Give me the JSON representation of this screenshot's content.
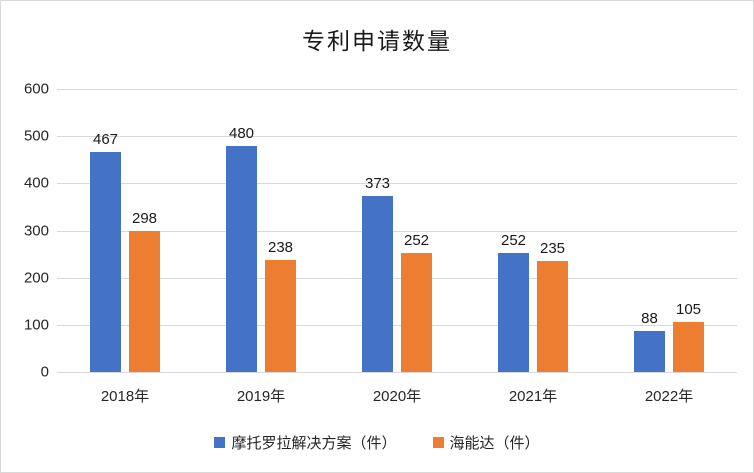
{
  "chart_data": {
    "type": "bar",
    "title": "专利申请数量",
    "categories": [
      "2018年",
      "2019年",
      "2020年",
      "2021年",
      "2022年"
    ],
    "series": [
      {
        "name": "摩托罗拉解决方案（件）",
        "color": "#4472C4",
        "values": [
          467,
          480,
          373,
          252,
          88
        ]
      },
      {
        "name": "海能达（件）",
        "color": "#ED7D31",
        "values": [
          298,
          238,
          252,
          235,
          105
        ]
      }
    ],
    "xlabel": "",
    "ylabel": "",
    "y_axis": {
      "min": 0,
      "max": 600,
      "tick_interval": 100,
      "ticks": [
        "600",
        "500",
        "400",
        "300",
        "200",
        "100",
        "0"
      ]
    },
    "grid": true,
    "legend_position": "bottom",
    "colors": {
      "background": "#FFFFFF",
      "border": "#D9D9D9",
      "gridline": "#D9D9D9",
      "text": "#262626"
    }
  }
}
